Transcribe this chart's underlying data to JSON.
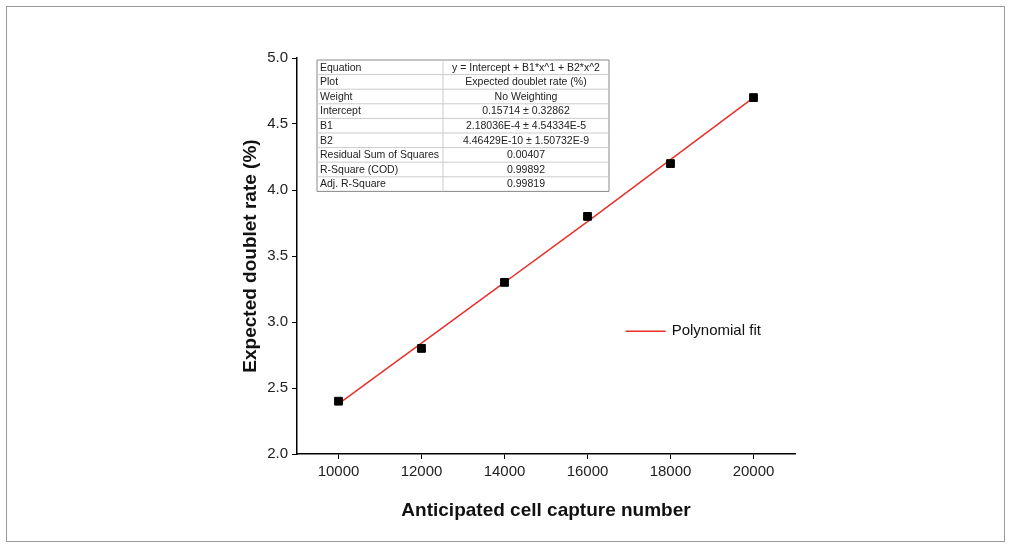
{
  "chart_data": {
    "type": "scatter",
    "xlabel": "Anticipated cell capture number",
    "ylabel": "Expected doublet rate (%)",
    "x": [
      10000,
      12000,
      14000,
      16000,
      18000,
      20000
    ],
    "series": [
      {
        "type": "scatter",
        "color": "#000000",
        "marker": "square",
        "values": [
          2.4,
          2.8,
          3.3,
          3.8,
          4.2,
          4.7
        ]
      },
      {
        "type": "line",
        "name": "Polynomial fit",
        "color": "#e8312a",
        "marker": "none",
        "line_style": "solid",
        "x": [
          10000,
          12000,
          14000,
          16000,
          18000,
          20000
        ],
        "values": [
          2.38,
          2.84,
          3.3,
          3.76,
          4.23,
          4.7
        ]
      }
    ],
    "xlim": [
      9000,
      21000
    ],
    "xticks": [
      10000,
      12000,
      14000,
      16000,
      18000,
      20000
    ],
    "ylim": [
      2.0,
      5.0
    ],
    "yticks": [
      {
        "value": 2.0,
        "label": "2.0"
      },
      {
        "value": 2.5,
        "label": "2.5"
      },
      {
        "value": 3.0,
        "label": "3.0"
      },
      {
        "value": 3.5,
        "label": "3.5"
      },
      {
        "value": 4.0,
        "label": "4.0"
      },
      {
        "value": 4.5,
        "label": "4.5"
      },
      {
        "value": 5.0,
        "label": "5.0"
      }
    ],
    "legend": "right",
    "annotations": [
      "Equation",
      "y = Intercept + B1*x^1 + B2*x^2",
      "Plot",
      "Expected doublet rate (%)",
      "Weight",
      "No Weighting",
      "Intercept",
      "0.15714 ± 0.32862",
      "B1",
      "2.18036E-4 ± 4.54334E-5",
      "B2",
      "4.46429E-10 ± 1.50732E-9",
      "Residual Sum of Squares",
      "0.00407",
      "R-Square (COD)",
      "0.99892",
      "Adj. R-Square",
      "0.99819"
    ]
  }
}
